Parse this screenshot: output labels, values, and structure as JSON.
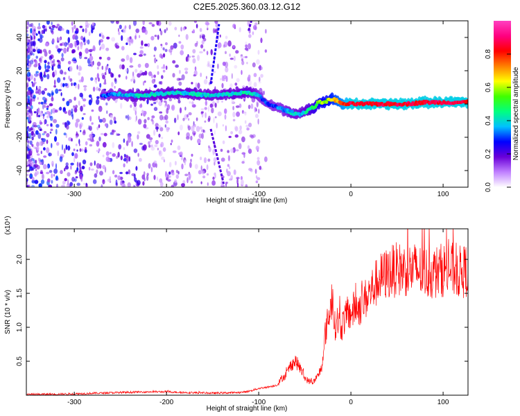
{
  "title": "C2E5.2025.360.03.12.G12",
  "chart_data": [
    {
      "type": "heatmap",
      "xlabel": "Height of straight line (km)",
      "ylabel": "Frequency (Hz)",
      "xlim": [
        -352,
        127
      ],
      "ylim": [
        -50,
        50
      ],
      "x_ticks": [
        -300,
        -200,
        -100,
        0,
        100
      ],
      "y_ticks": [
        -40,
        -20,
        0,
        20,
        40
      ],
      "colorbar": {
        "label": "Normalized spectral amplitude",
        "range": [
          0,
          1
        ],
        "ticks": [
          0.0,
          0.2,
          0.4,
          0.6,
          0.8
        ],
        "tick_labels": [
          "0.0",
          "0.2",
          "0.4",
          "0.6",
          "0.8"
        ],
        "colors": [
          "#ffffff",
          "#c080ff",
          "#6a00d8",
          "#0000ff",
          "#00c0ff",
          "#00ff80",
          "#40ff00",
          "#ffff00",
          "#ff8000",
          "#ff0000",
          "#ff0080",
          "#ff40c0"
        ]
      },
      "ridge": {
        "x": [
          -270,
          -250,
          -230,
          -210,
          -190,
          -170,
          -150,
          -130,
          -110,
          -100,
          -95,
          -90,
          -85,
          -80,
          -75,
          -70,
          -65,
          -60,
          -55,
          -50,
          -45,
          -40,
          -35,
          -30,
          -25,
          -20,
          -15,
          -10,
          -5,
          0,
          20,
          40,
          60,
          80,
          100,
          127
        ],
        "y": [
          5,
          6,
          5,
          6,
          7,
          6,
          5,
          6,
          7,
          5,
          2,
          0,
          -1,
          -2,
          -3,
          -4,
          -5,
          -6,
          -6,
          -5,
          -3,
          -2,
          1,
          1,
          2,
          3,
          2,
          0,
          0,
          0,
          0,
          0,
          0,
          1,
          1,
          1
        ],
        "amplitude": [
          0.3,
          0.35,
          0.4,
          0.4,
          0.4,
          0.4,
          0.38,
          0.4,
          0.42,
          0.35,
          0.3,
          0.3,
          0.3,
          0.32,
          0.33,
          0.35,
          0.38,
          0.38,
          0.38,
          0.4,
          0.45,
          0.5,
          0.55,
          0.6,
          0.6,
          0.65,
          0.7,
          0.75,
          0.8,
          0.85,
          0.85,
          0.85,
          0.85,
          0.85,
          0.85,
          0.85
        ]
      },
      "streaks": [
        {
          "x": [
            -152,
            -143
          ],
          "y": [
            12,
            48
          ],
          "amplitude": 0.25
        },
        {
          "x": [
            -152,
            -138
          ],
          "y": [
            -15,
            -48
          ],
          "amplitude": 0.2
        },
        {
          "x": [
            -111,
            -108
          ],
          "y": [
            44,
            50
          ],
          "amplitude": 0.2
        }
      ]
    },
    {
      "type": "line",
      "xlabel": "Height of straight line (km)",
      "ylabel": "SNR (10 * v/v)",
      "y_multiplier": "(x10⁴)",
      "xlim": [
        -352,
        127
      ],
      "ylim": [
        0,
        2.45
      ],
      "x_ticks": [
        -300,
        -200,
        -100,
        0,
        100
      ],
      "y_ticks": [
        0.5,
        1.0,
        1.5,
        2.0
      ],
      "color": "#ff0000",
      "series": [
        {
          "x": [
            -352,
            -300,
            -250,
            -220,
            -200,
            -180,
            -150,
            -120,
            -110,
            -100,
            -90,
            -80,
            -75,
            -70,
            -65,
            -60,
            -55,
            -50,
            -45,
            -40,
            -35,
            -30,
            -28,
            -25,
            -22,
            -20,
            -18,
            -15,
            -12,
            -10,
            -8,
            -5,
            -2,
            0,
            5,
            10,
            15,
            20,
            25,
            30,
            35,
            40,
            50,
            60,
            70,
            80,
            90,
            100,
            110,
            120,
            127
          ],
          "y": [
            0.01,
            0.02,
            0.04,
            0.05,
            0.05,
            0.04,
            0.03,
            0.04,
            0.06,
            0.1,
            0.12,
            0.15,
            0.25,
            0.3,
            0.45,
            0.5,
            0.4,
            0.25,
            0.2,
            0.2,
            0.3,
            0.5,
            0.9,
            1.1,
            1.3,
            1.5,
            1.0,
            1.1,
            1.05,
            1.0,
            1.1,
            1.15,
            1.2,
            1.2,
            1.3,
            1.3,
            1.4,
            1.5,
            1.6,
            1.7,
            1.75,
            1.8,
            1.85,
            1.85,
            1.85,
            1.8,
            1.8,
            1.85,
            1.85,
            1.8,
            1.85
          ]
        }
      ]
    }
  ]
}
